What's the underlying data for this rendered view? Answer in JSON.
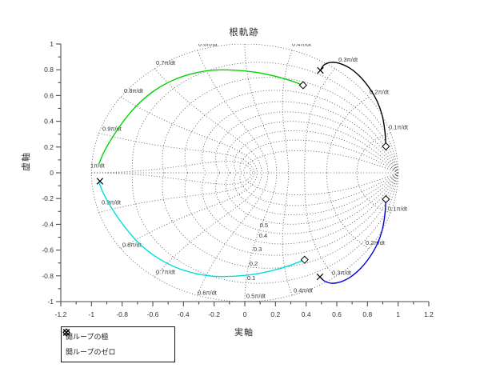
{
  "chart_data": {
    "type": "line",
    "subtype": "root-locus-zgrid",
    "title": "根軌跡",
    "xlabel": "実軸",
    "ylabel": "虚軸",
    "xlim": [
      -1.2,
      1.2
    ],
    "ylim": [
      -1,
      1
    ],
    "x_tick_values": [
      -1.2,
      -1,
      -0.8,
      -0.6,
      -0.4,
      -0.2,
      0,
      0.2,
      0.4,
      0.6,
      0.8,
      1,
      1.2
    ],
    "x_tick_labels": [
      "-1.2",
      "-1",
      "-0.8",
      "-0.6",
      "-0.4",
      "-0.2",
      "0",
      "0.2",
      "0.4",
      "0.6",
      "0.8",
      "1",
      "1.2"
    ],
    "y_tick_values": [
      1,
      0.8,
      0.6,
      0.4,
      0.2,
      0,
      -0.2,
      -0.4,
      -0.6,
      -0.8,
      -1
    ],
    "y_tick_labels": [
      "1",
      "0.8",
      "0.6",
      "0.4",
      "0.2",
      "0",
      "-0.2",
      "-0.4",
      "-0.6",
      "-0.8",
      "-1"
    ],
    "minor_tick_step": 0.1,
    "grid_on": true,
    "grid_color": "#4a4a4a",
    "axis_color": "#4d4d4d",
    "text_color": "#333333",
    "zgrid": {
      "zeta": [
        0.1,
        0.2,
        0.3,
        0.4,
        0.5,
        0.6,
        0.7,
        0.8,
        0.9
      ],
      "omega": [
        0.1,
        0.2,
        0.3,
        0.4,
        0.5,
        0.6,
        0.7,
        0.8,
        0.9,
        1.0
      ],
      "omega_labels": [
        {
          "t": "0.6π/dt",
          "x": -0.303,
          "y": 1.0
        },
        {
          "t": "0.7π/dt",
          "x": -0.579,
          "y": 0.855
        },
        {
          "t": "0.8π/dt",
          "x": -0.788,
          "y": 0.638
        },
        {
          "t": "0.9π/dt",
          "x": -0.929,
          "y": 0.343
        },
        {
          "t": "1π/dt",
          "x": -1.007,
          "y": 0.056
        },
        {
          "t": "0.4π/dt",
          "x": 0.308,
          "y": 1.0
        },
        {
          "t": "0.3π/dt",
          "x": 0.611,
          "y": 0.878
        },
        {
          "t": "0.2π/dt",
          "x": 0.814,
          "y": 0.629
        },
        {
          "t": "0.1π/dt",
          "x": 0.939,
          "y": 0.355
        },
        {
          "t": "0.1π/dt",
          "x": 0.934,
          "y": -0.28
        },
        {
          "t": "0.2π/dt",
          "x": 0.788,
          "y": -0.542
        },
        {
          "t": "0.3π/dt",
          "x": 0.569,
          "y": -0.776
        },
        {
          "t": "0.4π/dt",
          "x": 0.318,
          "y": -0.913
        },
        {
          "t": "0.5π/dt",
          "x": 0.01,
          "y": -0.957
        },
        {
          "t": "0.6π/dt",
          "x": -0.308,
          "y": -0.932
        },
        {
          "t": "0.7π/dt",
          "x": -0.579,
          "y": -0.77
        },
        {
          "t": "0.8π/dt",
          "x": -0.799,
          "y": -0.558
        },
        {
          "t": "0.9π/dt",
          "x": -0.934,
          "y": -0.23
        }
      ],
      "zeta_labels": [
        {
          "t": "0.5",
          "x": 0.125,
          "y": -0.405
        },
        {
          "t": "0.4",
          "x": 0.12,
          "y": -0.486
        },
        {
          "t": "0.3",
          "x": 0.084,
          "y": -0.592
        },
        {
          "t": "0.2",
          "x": 0.057,
          "y": -0.704
        },
        {
          "t": "0.1",
          "x": 0.042,
          "y": -0.816
        }
      ]
    },
    "branches": [
      {
        "name": "upper-right",
        "color": "#000000",
        "points": [
          [
            0.92,
            0.205
          ],
          [
            0.913,
            0.33
          ],
          [
            0.895,
            0.45
          ],
          [
            0.863,
            0.555
          ],
          [
            0.816,
            0.652
          ],
          [
            0.757,
            0.74
          ],
          [
            0.688,
            0.81
          ],
          [
            0.617,
            0.85
          ],
          [
            0.56,
            0.857
          ],
          [
            0.517,
            0.838
          ],
          [
            0.494,
            0.797
          ]
        ]
      },
      {
        "name": "lower-right",
        "color": "#0000d8",
        "points": [
          [
            0.92,
            -0.205
          ],
          [
            0.913,
            -0.33
          ],
          [
            0.895,
            -0.45
          ],
          [
            0.863,
            -0.555
          ],
          [
            0.816,
            -0.652
          ],
          [
            0.757,
            -0.74
          ],
          [
            0.688,
            -0.81
          ],
          [
            0.617,
            -0.85
          ],
          [
            0.56,
            -0.857
          ],
          [
            0.517,
            -0.838
          ],
          [
            0.49,
            -0.807
          ]
        ]
      },
      {
        "name": "upper-left",
        "color": "#00d400",
        "points": [
          [
            0.38,
            0.68
          ],
          [
            0.297,
            0.716
          ],
          [
            0.19,
            0.752
          ],
          [
            0.06,
            0.782
          ],
          [
            -0.07,
            0.797
          ],
          [
            -0.205,
            0.797
          ],
          [
            -0.335,
            0.772
          ],
          [
            -0.462,
            0.722
          ],
          [
            -0.585,
            0.642
          ],
          [
            -0.698,
            0.53
          ],
          [
            -0.793,
            0.398
          ],
          [
            -0.866,
            0.27
          ],
          [
            -0.92,
            0.158
          ],
          [
            -0.951,
            0.068
          ]
        ]
      },
      {
        "name": "lower-left",
        "color": "#00dddd",
        "points": [
          [
            -0.951,
            -0.075
          ],
          [
            -0.92,
            -0.165
          ],
          [
            -0.866,
            -0.278
          ],
          [
            -0.793,
            -0.405
          ],
          [
            -0.698,
            -0.537
          ],
          [
            -0.585,
            -0.648
          ],
          [
            -0.462,
            -0.728
          ],
          [
            -0.335,
            -0.778
          ],
          [
            -0.205,
            -0.803
          ],
          [
            -0.07,
            -0.803
          ],
          [
            0.06,
            -0.788
          ],
          [
            0.19,
            -0.756
          ],
          [
            0.297,
            -0.718
          ],
          [
            0.39,
            -0.675
          ]
        ]
      }
    ],
    "poles": [
      [
        0.38,
        0.68
      ],
      [
        0.92,
        0.205
      ],
      [
        0.92,
        -0.205
      ],
      [
        0.39,
        -0.675
      ]
    ],
    "zeros": [
      [
        0.493,
        0.795
      ],
      [
        -0.945,
        -0.065
      ],
      [
        0.49,
        -0.808
      ]
    ],
    "legend": {
      "items": [
        {
          "marker": "diamond",
          "label": "開ループの極"
        },
        {
          "marker": "x",
          "label": "開ループのゼロ"
        }
      ]
    }
  }
}
